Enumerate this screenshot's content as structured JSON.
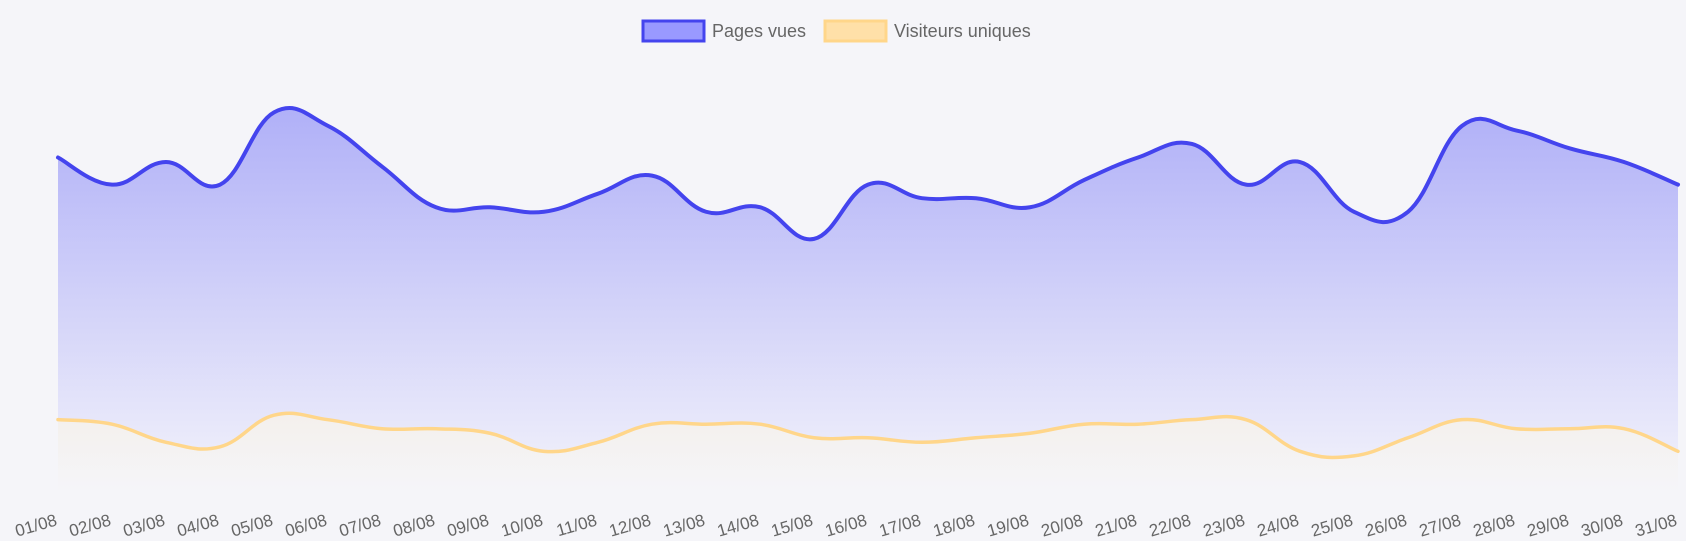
{
  "chart_data": {
    "type": "area",
    "categories": [
      "01/08",
      "02/08",
      "03/08",
      "04/08",
      "05/08",
      "06/08",
      "07/08",
      "08/08",
      "09/08",
      "10/08",
      "11/08",
      "12/08",
      "13/08",
      "14/08",
      "15/08",
      "16/08",
      "17/08",
      "18/08",
      "19/08",
      "20/08",
      "21/08",
      "22/08",
      "23/08",
      "24/08",
      "25/08",
      "26/08",
      "27/08",
      "28/08",
      "29/08",
      "30/08",
      "31/08"
    ],
    "ylim": [
      0,
      100
    ],
    "grid": false,
    "legend_position": "top",
    "series": [
      {
        "name": "Pages vues",
        "color": "#4444ee",
        "fill_color": "#9999ff",
        "values": [
          74,
          68,
          73,
          68,
          84,
          81,
          72,
          63,
          63,
          62,
          66,
          70,
          62,
          63,
          56,
          68,
          65,
          65,
          63,
          69,
          74,
          77,
          68,
          73,
          62,
          62,
          81,
          80,
          76,
          73,
          68
        ]
      },
      {
        "name": "Visiteurs uniques",
        "color": "#ffd68a",
        "fill_color": "#ffe0a8",
        "values": [
          16,
          15,
          11,
          10,
          17,
          16,
          14,
          14,
          13,
          9,
          11,
          15,
          15,
          15,
          12,
          12,
          11,
          12,
          13,
          15,
          15,
          16,
          16,
          9,
          8,
          12,
          16,
          14,
          14,
          14,
          9
        ]
      }
    ]
  }
}
